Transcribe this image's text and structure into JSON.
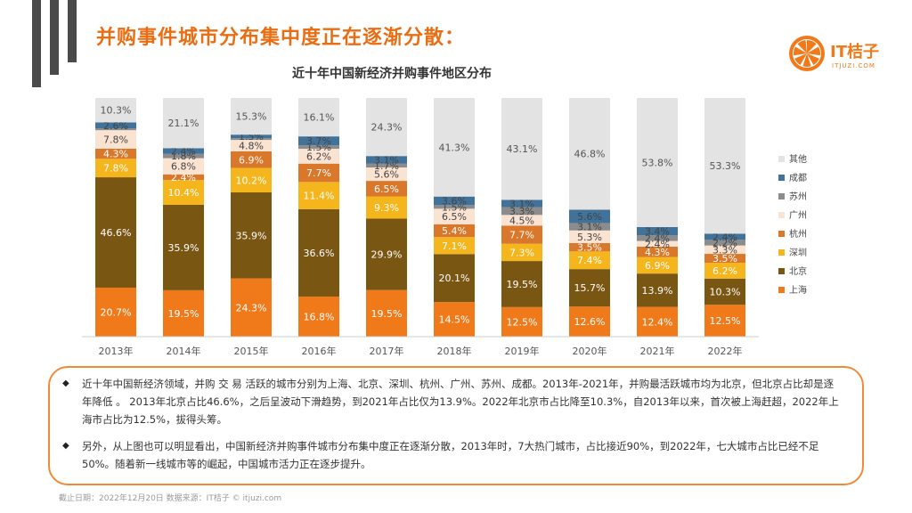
{
  "header": {
    "title": "并购事件城市分布集中度正在逐渐分散：",
    "logo_text": "IT桔子",
    "logo_sub": "ITJUZI.COM"
  },
  "colors": {
    "title": "#e96d12",
    "上海": "#f07a1a",
    "北京": "#7a5613",
    "深圳": "#f5b51c",
    "杭州": "#d9772b",
    "广州": "#fbe3d2",
    "苏州": "#8c8c8c",
    "成都": "#41729a",
    "其他": "#e3e3e3"
  },
  "chart_data": {
    "type": "stacked-bar",
    "title": "近十年中国新经济并购事件地区分布",
    "categories": [
      "2013年",
      "2014年",
      "2015年",
      "2016年",
      "2017年",
      "2018年",
      "2019年",
      "2020年",
      "2021年",
      "2022年"
    ],
    "series": [
      {
        "name": "上海",
        "values": [
          20.7,
          19.5,
          24.3,
          16.8,
          19.5,
          14.5,
          12.5,
          12.6,
          12.4,
          12.5
        ]
      },
      {
        "name": "北京",
        "values": [
          46.6,
          35.9,
          35.9,
          36.6,
          29.9,
          20.1,
          19.5,
          15.7,
          13.9,
          10.3
        ]
      },
      {
        "name": "深圳",
        "values": [
          7.8,
          10.4,
          10.2,
          11.4,
          9.3,
          7.1,
          7.3,
          7.4,
          6.9,
          6.2
        ]
      },
      {
        "name": "杭州",
        "values": [
          4.3,
          2.4,
          6.9,
          7.7,
          6.5,
          5.4,
          7.7,
          3.5,
          4.3,
          3.5
        ]
      },
      {
        "name": "广州",
        "values": [
          7.8,
          6.8,
          4.8,
          6.2,
          5.6,
          6.5,
          4.5,
          5.3,
          2.4,
          3.3
        ]
      },
      {
        "name": "苏州",
        "values": [
          0.7,
          1.8,
          0.7,
          1.5,
          1.7,
          1.5,
          3.3,
          3.1,
          2.4,
          2.2
        ]
      },
      {
        "name": "成都",
        "values": [
          2.6,
          2.4,
          1.5,
          3.7,
          3.1,
          3.6,
          3.1,
          5.6,
          3.4,
          2.4
        ]
      },
      {
        "name": "其他",
        "values": [
          10.3,
          21.1,
          15.3,
          16.1,
          24.3,
          41.3,
          43.1,
          46.8,
          53.8,
          53.3
        ]
      }
    ],
    "labels": [
      [
        "20.7%",
        "46.6%",
        "7.8%",
        "4.3%",
        "7.8%",
        "",
        "2.6%",
        "10.3%"
      ],
      [
        "19.5%",
        "35.9%",
        "10.4%",
        "2.4%",
        "6.8%",
        "1.8%",
        "2.4%",
        "21.1%"
      ],
      [
        "24.3%",
        "35.9%",
        "10.2%",
        "6.9%",
        "4.8%",
        "",
        "1.5%",
        "15.3%"
      ],
      [
        "16.8%",
        "36.6%",
        "11.4%",
        "7.7%",
        "6.2%",
        "1.5%",
        "3.7%",
        "16.1%"
      ],
      [
        "19.5%",
        "29.9%",
        "9.3%",
        "6.5%",
        "5.6%",
        "1.7%",
        "3.1%",
        "24.3%"
      ],
      [
        "14.5%",
        "20.1%",
        "7.1%",
        "5.4%",
        "6.5%",
        "1.5%",
        "3.6%",
        "41.3%"
      ],
      [
        "12.5%",
        "19.5%",
        "7.3%",
        "7.7%",
        "4.5%",
        "3.3%",
        "3.1%",
        "43.1%"
      ],
      [
        "12.6%",
        "15.7%",
        "7.4%",
        "3.5%",
        "5.3%",
        "3.1%",
        "5.6%",
        "46.8%"
      ],
      [
        "12.4%",
        "13.9%",
        "6.9%",
        "4.3%",
        "2.4%",
        "2.4%",
        "3.4%",
        "53.8%"
      ],
      [
        "12.5%",
        "10.3%",
        "6.2%",
        "3.5%",
        "3.3%",
        "2.2%",
        "2.4%",
        "53.3%"
      ]
    ],
    "label_colors": {
      "上海": "#ffffff",
      "北京": "#ffffff",
      "深圳": "#ffffff",
      "杭州": "#ffffff",
      "广州": "#444444",
      "苏州": "#444444",
      "成都": "#444444",
      "其他": "#555555"
    },
    "legend": {
      "position": "right",
      "order": [
        "其他",
        "成都",
        "苏州",
        "广州",
        "杭州",
        "深圳",
        "北京",
        "上海"
      ]
    },
    "ylim": [
      0,
      100
    ],
    "grid": false
  },
  "notes": [
    "近十年中国新经济领域，并购 交 易 活跃的城市分别为上海、北京、深圳、杭州、广州、苏州、成都。2013年-2021年，并购最活跃城市均为北京，但北京占比却是逐年降低 。 2013年北京占比46.6%，之后呈波动下滑趋势，到2021年占比仅为13.9%。2022年北京市占比降至10.3%，自2013年以来，首次被上海赶超，2022年上海市占比为12.5%，拔得头筹。",
    "另外，从上图也可以明显看出，中国新经济并购事件城市分布集中度正在逐渐分散，2013年时，7大热门城市，占比接近90%，到2022年，七大城市占比已经不足50%。随着新一线城市等的崛起，中国城市活力正在逐步提升。"
  ],
  "note_bullet": "◆",
  "footer": "截止日期：2022年12月20日   数据来源：IT桔子 © itjuzi.com"
}
